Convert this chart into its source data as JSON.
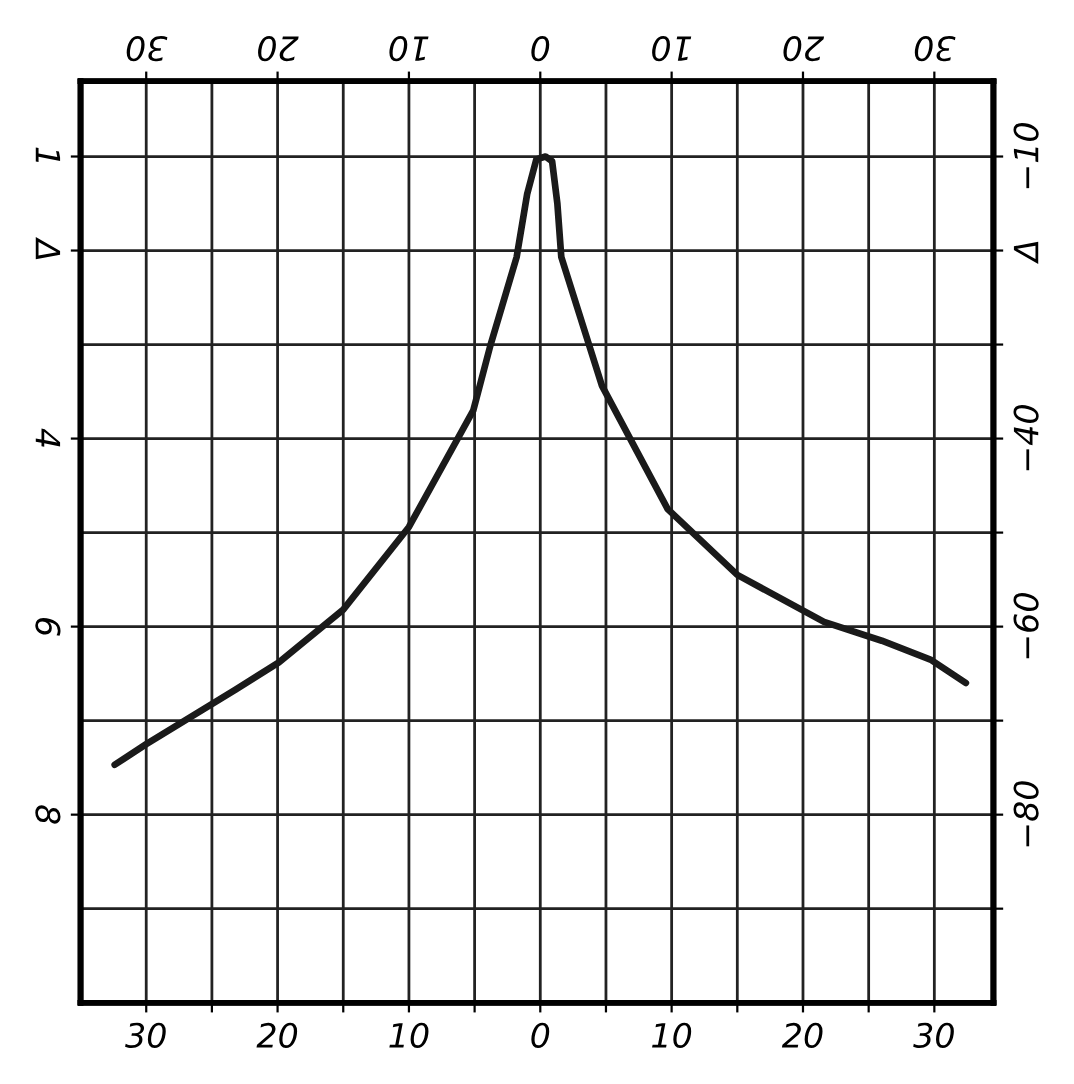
{
  "chart_data": {
    "type": "line",
    "series": [
      {
        "color": "#1a1a1a",
        "x": [
          -32.4,
          -30,
          -23.2,
          -19.9,
          -15.0,
          -10.0,
          -5.1,
          -3.8,
          -1.8,
          -1.0,
          -0.3,
          0.4,
          0.9,
          1.3,
          1.6,
          4.7,
          9.7,
          15.0,
          21.6,
          26,
          29.7,
          32.4
        ],
        "values": [
          -74.7,
          -72.5,
          -66.7,
          -63.8,
          -58.2,
          -49.4,
          -37.0,
          -30.1,
          -20.7,
          -14,
          -10.3,
          -10,
          -10.5,
          -15,
          -20.7,
          -34.4,
          -47.5,
          -54.5,
          -59.5,
          -61.5,
          -63.5,
          -66
        ]
      }
    ],
    "xlim": [
      -35,
      34.5
    ],
    "xticks": [
      {
        "value": -30,
        "label": "30"
      },
      {
        "value": -25,
        "label": null
      },
      {
        "value": -20,
        "label": "20"
      },
      {
        "value": -15,
        "label": null
      },
      {
        "value": -10,
        "label": "10"
      },
      {
        "value": -5,
        "label": null
      },
      0,
      {
        "value": 5,
        "label": null
      },
      10,
      {
        "value": 15,
        "label": null
      },
      20,
      {
        "value": 25,
        "label": null
      },
      30
    ],
    "x2lim": [
      -35,
      34.5
    ],
    "x2ticks": [
      {
        "value": -30,
        "label": "30"
      },
      {
        "value": -20,
        "label": "20"
      },
      {
        "value": -10,
        "label": "10"
      },
      0,
      10,
      20,
      30
    ],
    "ylim": [
      -100,
      -2
    ],
    "yticks": [
      {
        "value": -10,
        "label": "−10"
      },
      {
        "value": -20,
        "label": "Δ"
      },
      {
        "value": -30,
        "label": null
      },
      {
        "value": -40,
        "label": "−40"
      },
      {
        "value": -50,
        "label": null
      },
      {
        "value": -60,
        "label": "−60"
      },
      {
        "value": -70,
        "label": null
      },
      {
        "value": -80,
        "label": "−80"
      },
      {
        "value": -90,
        "label": null
      }
    ],
    "y2lim": [
      10,
      0.2
    ],
    "y2ticks": [
      1,
      {
        "value": 2,
        "label": "Δ"
      },
      4,
      6,
      8
    ],
    "grid": true,
    "line_style": "solid",
    "marker": "none"
  }
}
